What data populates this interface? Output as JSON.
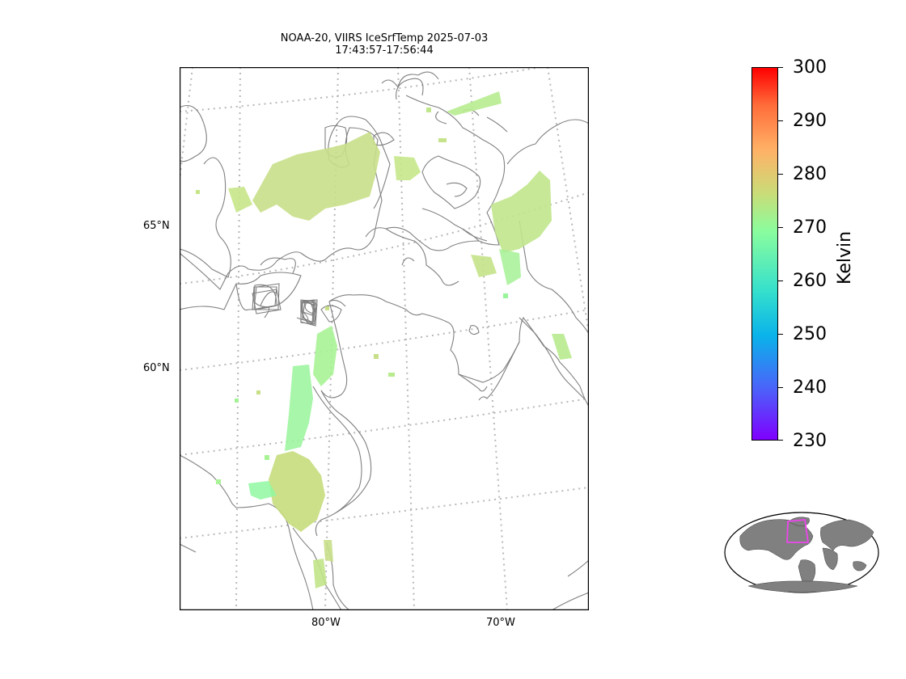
{
  "title": {
    "line1": "NOAA-20, VIIRS IceSrfTemp 2025-07-03",
    "line2": "17:43:57-17:56:44"
  },
  "map": {
    "lat_labels": [
      "65°N",
      "60°N"
    ],
    "lon_labels": [
      "80°W",
      "70°W"
    ],
    "gridline_style": "dotted",
    "coastline_color": "#808080"
  },
  "colorbar": {
    "label": "Kelvin",
    "ticks": [
      "300",
      "290",
      "280",
      "270",
      "260",
      "250",
      "240",
      "230"
    ],
    "min": 230,
    "max": 300,
    "colormap": "rainbow"
  },
  "inset": {
    "name": "world-locator-globe",
    "highlight_color": "#ee44ee"
  }
}
